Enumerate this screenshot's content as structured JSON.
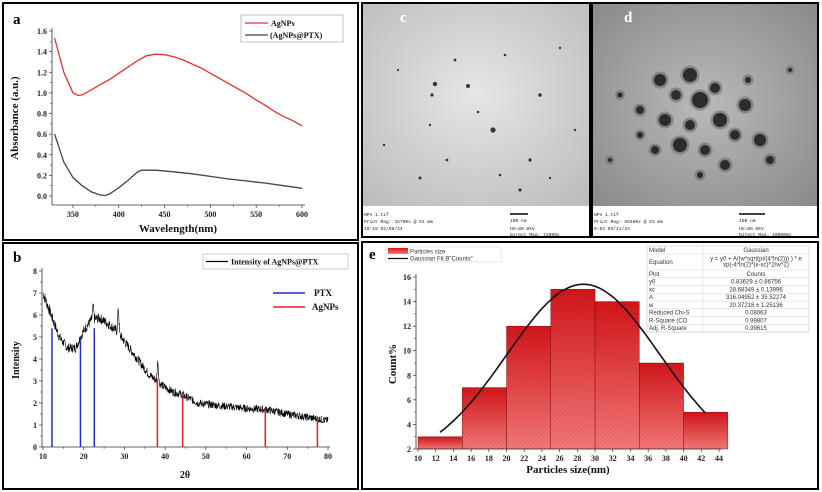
{
  "panels": {
    "a": {
      "label": "a"
    },
    "b": {
      "label": "b"
    },
    "c": {
      "label": "c",
      "info": [
        "NPs 1.tif",
        "Print Mag: 42700x @ 51 mm",
        "10:10 02/08/24"
      ],
      "scale": "100 nm",
      "hv": "HV=80.0kV",
      "direct_mag": "Direct Mag: 72000x"
    },
    "d": {
      "label": "d",
      "info": [
        "NPs 1.tif",
        "Print Mag: 59400x @ 51 mm",
        "9:54 03/11/24"
      ],
      "scale": "100 nm",
      "hv": "HV=80.0kV",
      "direct_mag": "Direct Mag: 100000x"
    },
    "e": {
      "label": "e"
    }
  },
  "chart_data": [
    {
      "type": "line",
      "panel": "a",
      "xlabel": "Wavelength(nm)",
      "ylabel": "Absorbance (a.u.)",
      "xlim": [
        330,
        600
      ],
      "ylim": [
        0,
        1.6
      ],
      "xticks": [
        350,
        400,
        450,
        500,
        550,
        600
      ],
      "yticks": [
        "0.0",
        "0.2",
        "0.4",
        "0.6",
        "0.8",
        "1.0",
        "1.2",
        "1.4",
        "1.6"
      ],
      "legend_position": "top-right",
      "series": [
        {
          "name": "AgNPs",
          "color": "#e8312f",
          "x": [
            330,
            340,
            350,
            356,
            360,
            370,
            380,
            390,
            400,
            410,
            420,
            430,
            440,
            450,
            460,
            470,
            480,
            490,
            500,
            510,
            520,
            530,
            540,
            550,
            560,
            570,
            580,
            590,
            600
          ],
          "y": [
            1.53,
            1.2,
            1.0,
            0.975,
            0.98,
            1.03,
            1.08,
            1.13,
            1.19,
            1.25,
            1.31,
            1.36,
            1.375,
            1.37,
            1.35,
            1.32,
            1.28,
            1.24,
            1.19,
            1.14,
            1.09,
            1.04,
            0.99,
            0.93,
            0.88,
            0.82,
            0.77,
            0.73,
            0.68
          ]
        },
        {
          "name": "(AgNPs@PTX)",
          "color": "#444444",
          "x": [
            330,
            340,
            350,
            360,
            370,
            380,
            385,
            390,
            400,
            410,
            420,
            425,
            440,
            460,
            480,
            500,
            520,
            540,
            560,
            580,
            600
          ],
          "y": [
            0.6,
            0.33,
            0.18,
            0.1,
            0.04,
            0.01,
            0.005,
            0.02,
            0.08,
            0.15,
            0.23,
            0.25,
            0.25,
            0.235,
            0.215,
            0.19,
            0.165,
            0.145,
            0.125,
            0.1,
            0.075
          ]
        }
      ]
    },
    {
      "type": "line",
      "panel": "b",
      "xlabel": "2θ",
      "ylabel": "Intensity",
      "xlim": [
        10,
        80
      ],
      "ylim": [
        0,
        8
      ],
      "xticks": [
        10,
        20,
        30,
        40,
        50,
        60,
        70,
        80
      ],
      "yticks": [
        0,
        1,
        2,
        3,
        4,
        5,
        6,
        7,
        8
      ],
      "legend_position": "top-right",
      "series": [
        {
          "name": "Intensity of AgNPs@PTX",
          "color": "#000000",
          "x": [
            10,
            11,
            12,
            14,
            16,
            18,
            20,
            22,
            24,
            26,
            28,
            30,
            32,
            34,
            36,
            38,
            40,
            42,
            44,
            46,
            48,
            50,
            55,
            60,
            65,
            70,
            75,
            80
          ],
          "y": [
            7.0,
            6.5,
            6.0,
            5.0,
            4.5,
            4.5,
            5.3,
            5.8,
            5.85,
            5.6,
            5.3,
            4.8,
            4.3,
            3.8,
            3.3,
            3.0,
            2.7,
            2.5,
            2.4,
            2.2,
            2.0,
            1.95,
            1.85,
            1.75,
            1.7,
            1.5,
            1.35,
            1.2
          ],
          "sharp_peaks": [
            {
              "x": 22.3,
              "y": 6.4
            },
            {
              "x": 28.5,
              "y": 6.4
            },
            {
              "x": 38.2,
              "y": 4.0
            }
          ]
        },
        {
          "name": "PTX",
          "color": "#1f2fd0",
          "type": "stick",
          "x": [
            12.2,
            19.2,
            22.6
          ],
          "y": [
            5.4,
            4.8,
            5.4
          ]
        },
        {
          "name": "AgNPs",
          "color": "#e02020",
          "type": "stick",
          "x": [
            38.1,
            44.3,
            64.6,
            77.4
          ],
          "y": [
            3.1,
            2.35,
            1.75,
            1.25
          ]
        }
      ]
    },
    {
      "type": "bar",
      "panel": "e",
      "xlabel": "Particles size(nm)",
      "ylabel": "Count%",
      "xlim": [
        10,
        44
      ],
      "ylim": [
        2,
        16
      ],
      "xticks": [
        10,
        12,
        14,
        16,
        18,
        20,
        22,
        24,
        26,
        28,
        30,
        32,
        34,
        36,
        38,
        40,
        42,
        44
      ],
      "yticks": [
        2,
        4,
        6,
        8,
        10,
        12,
        14,
        16
      ],
      "legend_position": "top-left",
      "series": [
        {
          "name": "Particles size",
          "color": "#e02020",
          "bins": [
            [
              10,
              15
            ],
            [
              15,
              20
            ],
            [
              20,
              25
            ],
            [
              25,
              30
            ],
            [
              30,
              35
            ],
            [
              35,
              40
            ],
            [
              40,
              45
            ]
          ],
          "values": [
            3,
            7,
            12,
            15,
            14,
            9,
            5
          ]
        },
        {
          "name": "Gaussian Fit B\"Counts\"",
          "color": "#111111",
          "type": "fit",
          "params": {
            "y0": 0.83629,
            "xc": 28.68349,
            "A": 316.04952,
            "w": 20.37218
          },
          "x_range": [
            12.5,
            42.5
          ]
        }
      ],
      "fit_table": [
        [
          "Model",
          "Gaussian"
        ],
        [
          "Equation",
          "y = y0 + A/(w*sqrt(pi/(4*ln(2))) ) * exp(-4*ln(2)*(x-xc)^2/w^2)"
        ],
        [
          "Plot",
          "Counts"
        ],
        [
          "y0",
          "0.83629 ± 0.86756"
        ],
        [
          "xc",
          "28.68349 ± 0.13996"
        ],
        [
          "A",
          "316.04952 ± 35.52274"
        ],
        [
          "w",
          "20.37218 ± 1.25136"
        ],
        [
          "Reduced Chi-S",
          "0.08063"
        ],
        [
          "R-Square (CO",
          "0.99807"
        ],
        [
          "Adj. R-Square",
          "0.99615"
        ]
      ]
    }
  ]
}
